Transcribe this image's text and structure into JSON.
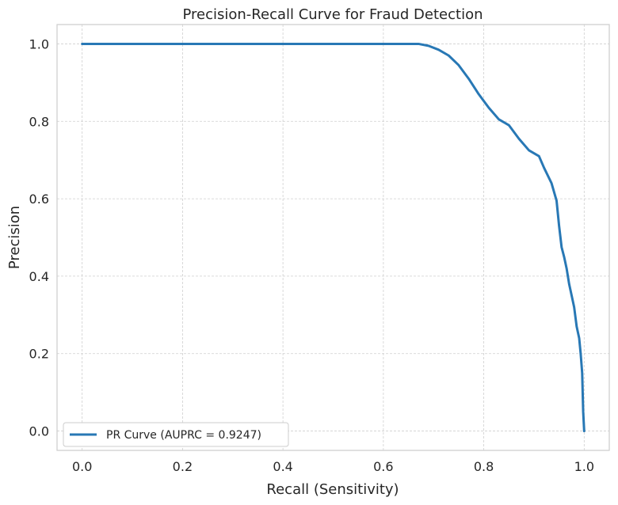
{
  "chart_data": {
    "type": "line",
    "title": "Precision-Recall Curve for Fraud Detection",
    "xlabel": "Recall (Sensitivity)",
    "ylabel": "Precision",
    "xlim": [
      -0.05,
      1.05
    ],
    "ylim": [
      -0.05,
      1.05
    ],
    "xticks": [
      0.0,
      0.2,
      0.4,
      0.6,
      0.8,
      1.0
    ],
    "yticks": [
      0.0,
      0.2,
      0.4,
      0.6,
      0.8,
      1.0
    ],
    "xtick_labels": [
      "0.0",
      "0.2",
      "0.4",
      "0.6",
      "0.8",
      "1.0"
    ],
    "ytick_labels": [
      "0.0",
      "0.2",
      "0.4",
      "0.6",
      "0.8",
      "1.0"
    ],
    "grid": true,
    "legend_position": "lower-left",
    "series": [
      {
        "name": "PR Curve (AUPRC = 0.9247)",
        "color": "#2878b5",
        "x": [
          0.0,
          0.1,
          0.2,
          0.3,
          0.4,
          0.5,
          0.6,
          0.67,
          0.69,
          0.71,
          0.73,
          0.75,
          0.77,
          0.79,
          0.81,
          0.83,
          0.85,
          0.87,
          0.89,
          0.91,
          0.92,
          0.935,
          0.945,
          0.95,
          0.955,
          0.96,
          0.965,
          0.97,
          0.975,
          0.98,
          0.985,
          0.99,
          0.993,
          0.996,
          0.998,
          1.0
        ],
        "y": [
          1.0,
          1.0,
          1.0,
          1.0,
          1.0,
          1.0,
          1.0,
          1.0,
          0.995,
          0.985,
          0.97,
          0.945,
          0.91,
          0.87,
          0.835,
          0.805,
          0.79,
          0.755,
          0.725,
          0.71,
          0.68,
          0.64,
          0.595,
          0.53,
          0.475,
          0.45,
          0.42,
          0.38,
          0.35,
          0.32,
          0.27,
          0.24,
          0.2,
          0.15,
          0.05,
          0.0
        ]
      }
    ]
  }
}
